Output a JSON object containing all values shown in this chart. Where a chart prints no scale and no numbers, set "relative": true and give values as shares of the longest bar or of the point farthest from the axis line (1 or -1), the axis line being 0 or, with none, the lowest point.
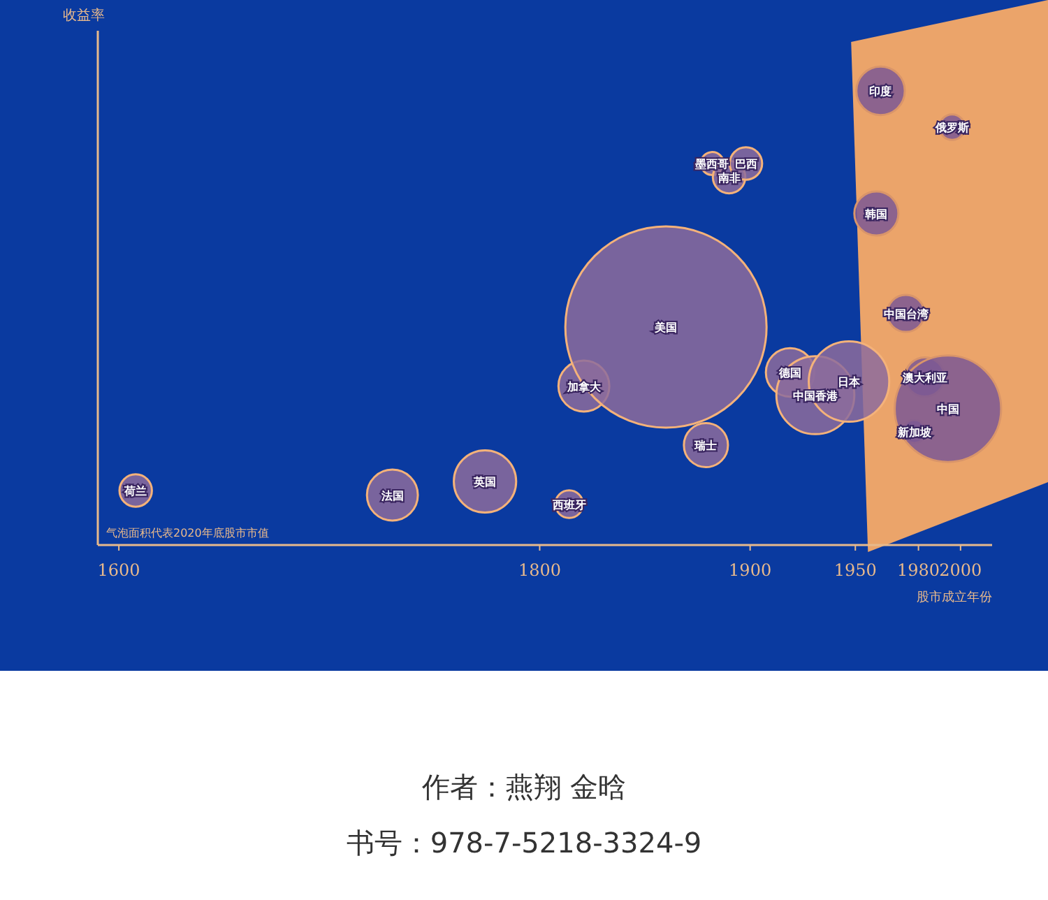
{
  "chart_data": {
    "type": "bubble",
    "xlabel": "股市成立年份",
    "ylabel": "收益率",
    "relative": true,
    "xlim": [
      1590,
      2015
    ],
    "xticks": [
      1600,
      1800,
      1900,
      1950,
      1980,
      2000
    ],
    "series": [
      {
        "color": "#8d6c9c",
        "x": [
          1608,
          1730,
          1774,
          1814,
          1821,
          1860,
          1879,
          1882,
          1890,
          1898,
          1919,
          1931,
          1947
        ],
        "values": [
          0.12,
          0.11,
          0.14,
          0.09,
          0.35,
          0.48,
          0.22,
          0.84,
          0.81,
          0.84,
          0.38,
          0.33,
          0.36
        ],
        "sizes": [
          0.026,
          0.064,
          0.096,
          0.019,
          0.064,
          1,
          0.048,
          0.013,
          0.026,
          0.026,
          0.058,
          0.15,
          0.16
        ]
      },
      {
        "color": "#7b5894",
        "x": [
          1962,
          1960,
          1974,
          1978,
          1983,
          1994,
          1996
        ],
        "values": [
          1,
          0.73,
          0.51,
          0.25,
          0.37,
          0.3,
          0.92
        ],
        "sizes": [
          0.058,
          0.048,
          0.034,
          0.013,
          0.038,
          0.28,
          0.016
        ]
      }
    ],
    "annotations": [
      {
        "text": "荷兰",
        "x": 1608,
        "y": 0.12
      },
      {
        "text": "法国",
        "x": 1730,
        "y": 0.11
      },
      {
        "text": "英国",
        "x": 1774,
        "y": 0.14
      },
      {
        "text": "西班牙",
        "x": 1814,
        "y": 0.09
      },
      {
        "text": "加拿大",
        "x": 1821,
        "y": 0.35
      },
      {
        "text": "美国",
        "x": 1860,
        "y": 0.48
      },
      {
        "text": "瑞士",
        "x": 1879,
        "y": 0.22
      },
      {
        "text": "墨西哥",
        "x": 1882,
        "y": 0.84
      },
      {
        "text": "南非",
        "x": 1890,
        "y": 0.81
      },
      {
        "text": "巴西",
        "x": 1898,
        "y": 0.84
      },
      {
        "text": "德国",
        "x": 1919,
        "y": 0.38
      },
      {
        "text": "中国香港",
        "x": 1931,
        "y": 0.33
      },
      {
        "text": "日本",
        "x": 1947,
        "y": 0.36
      },
      {
        "text": "印度",
        "x": 1962,
        "y": 1
      },
      {
        "text": "韩国",
        "x": 1960,
        "y": 0.73
      },
      {
        "text": "中国台湾",
        "x": 1974,
        "y": 0.51
      },
      {
        "text": "新加坡",
        "x": 1978,
        "y": 0.25
      },
      {
        "text": "澳大利亚",
        "x": 1983,
        "y": 0.37
      },
      {
        "text": "中国",
        "x": 1994,
        "y": 0.3
      },
      {
        "text": "俄罗斯",
        "x": 1996,
        "y": 0.92
      },
      "气泡面积代表2020年底股市市值",
      "作者：燕翔 金晗",
      "书号：978-7-5218-3324-9"
    ]
  }
}
